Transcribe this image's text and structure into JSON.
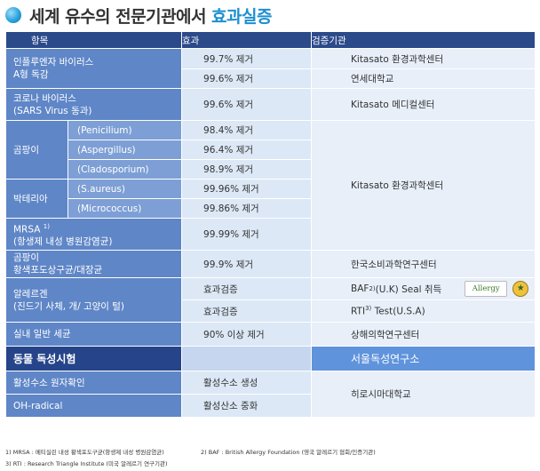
{
  "title": {
    "main": "세계 유수의 전문기관에서",
    "accent": "효과실증",
    "accent_color": "#1d8fd0"
  },
  "header": {
    "item": "항목",
    "effect": "효과",
    "org": "검증기관"
  },
  "rows": {
    "influenza": {
      "cat": "인플루엔자 바이러스",
      "cat2": "A형 독감",
      "eff1": "99.7% 제거",
      "eff2": "99.6% 제거",
      "org1": "Kitasato 환경과학센터",
      "org2": "연세대학교"
    },
    "corona": {
      "cat": "코로나 바이러스",
      "cat2": "(SARS Virus 동과)",
      "eff": "99.6% 제거",
      "org": "Kitasato 메디컬센터"
    },
    "mold": {
      "cat": "곰팡이",
      "sub1": "(Penicilium)",
      "sub2": "(Aspergillus)",
      "sub3": "(Cladosporium)",
      "eff1": "98.4% 제거",
      "eff2": "96.4% 제거",
      "eff3": "98.9% 제거"
    },
    "bacteria": {
      "cat": "박테리아",
      "sub1": "(S.aureus)",
      "sub2": "(Micrococcus)",
      "eff1": "99.96% 제거",
      "eff2": "99.86% 제거"
    },
    "mrsa": {
      "cat": "MRSA",
      "sup": "1)",
      "cat2": "(항생제 내성 병원감염균)",
      "eff": "99.99% 제거"
    },
    "group_org": "Kitasato 환경과학센터",
    "mold2": {
      "cat": "곰팡이",
      "cat2": "황색포도상구균/대장균",
      "eff": "99.9% 제거",
      "org": "한국소비과학연구센터"
    },
    "allergen": {
      "cat": "알레르겐",
      "cat2": "(진드기 사체, 개/ 고양이 털)",
      "eff1": "효과검증",
      "eff2": "효과검증",
      "org1_pre": "BAF",
      "org1_sup": "2)",
      "org1_post": " (U.K) Seal 취득",
      "org2_pre": "RTI",
      "org2_sup": "3)",
      "org2_post": " Test(U.S.A)",
      "badge_allergy": "Allergy",
      "badge_seal": "★"
    },
    "indoor": {
      "cat": "실내 일반 세균",
      "eff": "90% 이상 제거",
      "org": "상해의학연구센터"
    },
    "animal": {
      "cat": "동물 독성시험",
      "org": "서울독성연구소"
    },
    "h2": {
      "cat": "활성수소 원자확인",
      "eff": "활성수소 생성"
    },
    "oh": {
      "cat": "OH-radical",
      "eff": "활성산소 중화"
    },
    "last_org": "히로시마대학교"
  },
  "footnotes": {
    "f1": "1) MRSA : 메티실린 내성 황색포도구균(항생제 내성 병원감염균)",
    "f2": "2) BAF : British Allergy Foundation (영국 알레르기 협회/인증기관)",
    "f3": "3) RTI : Research Triangle Institute (미국 알레르기 연구기관)"
  },
  "colors": {
    "header": "#2b4a8a",
    "category": "#5f86c7",
    "subcategory": "#7d9fd5",
    "effect": "#dce8f6",
    "org": "#e8eff9",
    "highlight": "#26448a",
    "highlight_org": "#5f93dc"
  }
}
